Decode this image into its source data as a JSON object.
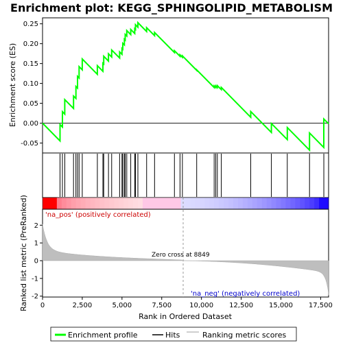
{
  "chart_data": {
    "type": "line",
    "title": "Enrichment plot: KEGG_SPHINGOLIPID_METABOLISM",
    "xlabel": "Rank in Ordered Dataset",
    "ylabel_top": "Enrichment score (ES)",
    "ylabel_bottom": "Ranked list metric (PreRanked)",
    "xlim": [
      0,
      18000
    ],
    "ylim_top": [
      -0.075,
      0.265
    ],
    "ylim_bottom": [
      -2.05,
      2.9
    ],
    "x_ticks": [
      0,
      2500,
      5000,
      7500,
      10000,
      12500,
      15000,
      17500
    ],
    "x_tick_labels": [
      "0",
      "2,500",
      "5,000",
      "7,500",
      "10,000",
      "12,500",
      "15,000",
      "17,500"
    ],
    "y_ticks_top": [
      -0.05,
      0.0,
      0.05,
      0.1,
      0.15,
      0.2,
      0.25
    ],
    "y_tick_labels_top": [
      "-0.05",
      "0.00",
      "0.05",
      "0.10",
      "0.15",
      "0.20",
      "0.25"
    ],
    "y_ticks_bottom": [
      -2,
      -1,
      0,
      1,
      2
    ],
    "y_tick_labels_bottom": [
      "-2",
      "-1",
      "0",
      "1",
      "2"
    ],
    "hits": [
      1100,
      1250,
      1400,
      1950,
      2100,
      2200,
      2300,
      2500,
      3450,
      3800,
      3850,
      4150,
      4350,
      4850,
      5000,
      5050,
      5150,
      5200,
      5300,
      5550,
      5800,
      5850,
      6000,
      6550,
      7050,
      8300,
      8650,
      8800,
      9700,
      10800,
      10900,
      11000,
      11250,
      13100,
      14400,
      15400,
      16800,
      17700
    ],
    "n_genes": 18000,
    "es_peak": 0.253,
    "zero_cross_rank": 8849,
    "zero_cross_label": "Zero cross at 8849",
    "pos_label": "'na_pos' (positively correlated)",
    "neg_label": "'na_neg' (negatively correlated)",
    "series": [
      {
        "name": "Enrichment profile",
        "color": "#00ff00"
      },
      {
        "name": "Hits",
        "color": "#000000"
      },
      {
        "name": "Ranking metric scores",
        "color": "#bebebe"
      }
    ],
    "grid": false,
    "legend_position": "bottom"
  }
}
